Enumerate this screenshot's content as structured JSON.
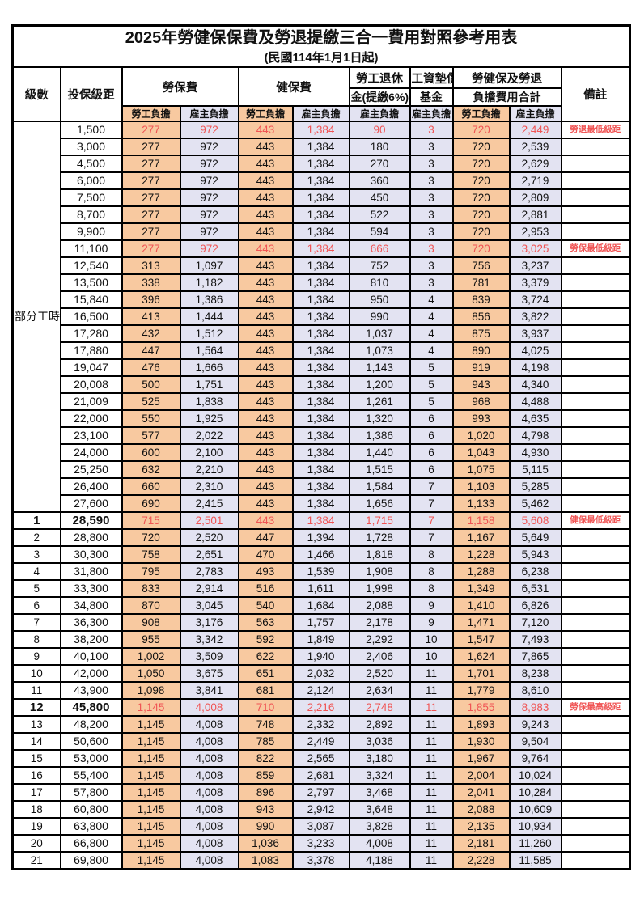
{
  "title": "2025年勞健保保費及勞退提繳三合一費用對照參考用表",
  "subtitle": "(民國114年1月1日起)",
  "colors": {
    "employee_fill": "#f8c9a0",
    "employer_fill": "#e3e3f2",
    "highlight_text": "#f05454",
    "border": "#000000"
  },
  "header": {
    "level": "級數",
    "bracket": "投保級距",
    "labor_insurance": "勞保費",
    "health_insurance": "健保費",
    "pension_line1": "勞工退休",
    "pension_line2": "金(提繳6%)",
    "wage_fund_line1": "工資墊償",
    "wage_fund_line2": "基金",
    "total_line1": "勞健保及勞退",
    "total_line2": "負擔費用合計",
    "remark": "備註",
    "employee_share": "勞工負擔",
    "employer_share": "雇主負擔"
  },
  "part_time": {
    "label": "部分工時",
    "row_count": 23
  },
  "rows": [
    {
      "level": null,
      "bracket": "1,500",
      "values": [
        "277",
        "972",
        "443",
        "1,384",
        "90",
        "3",
        "720",
        "2,449"
      ],
      "remark": "勞退最低級距",
      "highlight": true,
      "emphasis": false
    },
    {
      "level": null,
      "bracket": "3,000",
      "values": [
        "277",
        "972",
        "443",
        "1,384",
        "180",
        "3",
        "720",
        "2,539"
      ],
      "remark": "",
      "highlight": false,
      "emphasis": false
    },
    {
      "level": null,
      "bracket": "4,500",
      "values": [
        "277",
        "972",
        "443",
        "1,384",
        "270",
        "3",
        "720",
        "2,629"
      ],
      "remark": "",
      "highlight": false,
      "emphasis": false
    },
    {
      "level": null,
      "bracket": "6,000",
      "values": [
        "277",
        "972",
        "443",
        "1,384",
        "360",
        "3",
        "720",
        "2,719"
      ],
      "remark": "",
      "highlight": false,
      "emphasis": false
    },
    {
      "level": null,
      "bracket": "7,500",
      "values": [
        "277",
        "972",
        "443",
        "1,384",
        "450",
        "3",
        "720",
        "2,809"
      ],
      "remark": "",
      "highlight": false,
      "emphasis": false
    },
    {
      "level": null,
      "bracket": "8,700",
      "values": [
        "277",
        "972",
        "443",
        "1,384",
        "522",
        "3",
        "720",
        "2,881"
      ],
      "remark": "",
      "highlight": false,
      "emphasis": false
    },
    {
      "level": null,
      "bracket": "9,900",
      "values": [
        "277",
        "972",
        "443",
        "1,384",
        "594",
        "3",
        "720",
        "2,953"
      ],
      "remark": "",
      "highlight": false,
      "emphasis": false
    },
    {
      "level": null,
      "bracket": "11,100",
      "values": [
        "277",
        "972",
        "443",
        "1,384",
        "666",
        "3",
        "720",
        "3,025"
      ],
      "remark": "勞保最低級距",
      "highlight": true,
      "emphasis": false
    },
    {
      "level": null,
      "bracket": "12,540",
      "values": [
        "313",
        "1,097",
        "443",
        "1,384",
        "752",
        "3",
        "756",
        "3,237"
      ],
      "remark": "",
      "highlight": false,
      "emphasis": false
    },
    {
      "level": null,
      "bracket": "13,500",
      "values": [
        "338",
        "1,182",
        "443",
        "1,384",
        "810",
        "3",
        "781",
        "3,379"
      ],
      "remark": "",
      "highlight": false,
      "emphasis": false
    },
    {
      "level": null,
      "bracket": "15,840",
      "values": [
        "396",
        "1,386",
        "443",
        "1,384",
        "950",
        "4",
        "839",
        "3,724"
      ],
      "remark": "",
      "highlight": false,
      "emphasis": false
    },
    {
      "level": null,
      "bracket": "16,500",
      "values": [
        "413",
        "1,444",
        "443",
        "1,384",
        "990",
        "4",
        "856",
        "3,822"
      ],
      "remark": "",
      "highlight": false,
      "emphasis": false
    },
    {
      "level": null,
      "bracket": "17,280",
      "values": [
        "432",
        "1,512",
        "443",
        "1,384",
        "1,037",
        "4",
        "875",
        "3,937"
      ],
      "remark": "",
      "highlight": false,
      "emphasis": false
    },
    {
      "level": null,
      "bracket": "17,880",
      "values": [
        "447",
        "1,564",
        "443",
        "1,384",
        "1,073",
        "4",
        "890",
        "4,025"
      ],
      "remark": "",
      "highlight": false,
      "emphasis": false
    },
    {
      "level": null,
      "bracket": "19,047",
      "values": [
        "476",
        "1,666",
        "443",
        "1,384",
        "1,143",
        "5",
        "919",
        "4,198"
      ],
      "remark": "",
      "highlight": false,
      "emphasis": false
    },
    {
      "level": null,
      "bracket": "20,008",
      "values": [
        "500",
        "1,751",
        "443",
        "1,384",
        "1,200",
        "5",
        "943",
        "4,340"
      ],
      "remark": "",
      "highlight": false,
      "emphasis": false
    },
    {
      "level": null,
      "bracket": "21,009",
      "values": [
        "525",
        "1,838",
        "443",
        "1,384",
        "1,261",
        "5",
        "968",
        "4,488"
      ],
      "remark": "",
      "highlight": false,
      "emphasis": false
    },
    {
      "level": null,
      "bracket": "22,000",
      "values": [
        "550",
        "1,925",
        "443",
        "1,384",
        "1,320",
        "6",
        "993",
        "4,635"
      ],
      "remark": "",
      "highlight": false,
      "emphasis": false
    },
    {
      "level": null,
      "bracket": "23,100",
      "values": [
        "577",
        "2,022",
        "443",
        "1,384",
        "1,386",
        "6",
        "1,020",
        "4,798"
      ],
      "remark": "",
      "highlight": false,
      "emphasis": false
    },
    {
      "level": null,
      "bracket": "24,000",
      "values": [
        "600",
        "2,100",
        "443",
        "1,384",
        "1,440",
        "6",
        "1,043",
        "4,930"
      ],
      "remark": "",
      "highlight": false,
      "emphasis": false
    },
    {
      "level": null,
      "bracket": "25,250",
      "values": [
        "632",
        "2,210",
        "443",
        "1,384",
        "1,515",
        "6",
        "1,075",
        "5,115"
      ],
      "remark": "",
      "highlight": false,
      "emphasis": false
    },
    {
      "level": null,
      "bracket": "26,400",
      "values": [
        "660",
        "2,310",
        "443",
        "1,384",
        "1,584",
        "7",
        "1,103",
        "5,285"
      ],
      "remark": "",
      "highlight": false,
      "emphasis": false
    },
    {
      "level": null,
      "bracket": "27,600",
      "values": [
        "690",
        "2,415",
        "443",
        "1,384",
        "1,656",
        "7",
        "1,133",
        "5,462"
      ],
      "remark": "",
      "highlight": false,
      "emphasis": false
    },
    {
      "level": "1",
      "bracket": "28,590",
      "values": [
        "715",
        "2,501",
        "443",
        "1,384",
        "1,715",
        "7",
        "1,158",
        "5,608"
      ],
      "remark": "健保最低級距",
      "highlight": true,
      "emphasis": true
    },
    {
      "level": "2",
      "bracket": "28,800",
      "values": [
        "720",
        "2,520",
        "447",
        "1,394",
        "1,728",
        "7",
        "1,167",
        "5,649"
      ],
      "remark": "",
      "highlight": false,
      "emphasis": false
    },
    {
      "level": "3",
      "bracket": "30,300",
      "values": [
        "758",
        "2,651",
        "470",
        "1,466",
        "1,818",
        "8",
        "1,228",
        "5,943"
      ],
      "remark": "",
      "highlight": false,
      "emphasis": false
    },
    {
      "level": "4",
      "bracket": "31,800",
      "values": [
        "795",
        "2,783",
        "493",
        "1,539",
        "1,908",
        "8",
        "1,288",
        "6,238"
      ],
      "remark": "",
      "highlight": false,
      "emphasis": false
    },
    {
      "level": "5",
      "bracket": "33,300",
      "values": [
        "833",
        "2,914",
        "516",
        "1,611",
        "1,998",
        "8",
        "1,349",
        "6,531"
      ],
      "remark": "",
      "highlight": false,
      "emphasis": false
    },
    {
      "level": "6",
      "bracket": "34,800",
      "values": [
        "870",
        "3,045",
        "540",
        "1,684",
        "2,088",
        "9",
        "1,410",
        "6,826"
      ],
      "remark": "",
      "highlight": false,
      "emphasis": false
    },
    {
      "level": "7",
      "bracket": "36,300",
      "values": [
        "908",
        "3,176",
        "563",
        "1,757",
        "2,178",
        "9",
        "1,471",
        "7,120"
      ],
      "remark": "",
      "highlight": false,
      "emphasis": false
    },
    {
      "level": "8",
      "bracket": "38,200",
      "values": [
        "955",
        "3,342",
        "592",
        "1,849",
        "2,292",
        "10",
        "1,547",
        "7,493"
      ],
      "remark": "",
      "highlight": false,
      "emphasis": false
    },
    {
      "level": "9",
      "bracket": "40,100",
      "values": [
        "1,002",
        "3,509",
        "622",
        "1,940",
        "2,406",
        "10",
        "1,624",
        "7,865"
      ],
      "remark": "",
      "highlight": false,
      "emphasis": false
    },
    {
      "level": "10",
      "bracket": "42,000",
      "values": [
        "1,050",
        "3,675",
        "651",
        "2,032",
        "2,520",
        "11",
        "1,701",
        "8,238"
      ],
      "remark": "",
      "highlight": false,
      "emphasis": false
    },
    {
      "level": "11",
      "bracket": "43,900",
      "values": [
        "1,098",
        "3,841",
        "681",
        "2,124",
        "2,634",
        "11",
        "1,779",
        "8,610"
      ],
      "remark": "",
      "highlight": false,
      "emphasis": false
    },
    {
      "level": "12",
      "bracket": "45,800",
      "values": [
        "1,145",
        "4,008",
        "710",
        "2,216",
        "2,748",
        "11",
        "1,855",
        "8,983"
      ],
      "remark": "勞保最高級距",
      "highlight": true,
      "emphasis": true
    },
    {
      "level": "13",
      "bracket": "48,200",
      "values": [
        "1,145",
        "4,008",
        "748",
        "2,332",
        "2,892",
        "11",
        "1,893",
        "9,243"
      ],
      "remark": "",
      "highlight": false,
      "emphasis": false
    },
    {
      "level": "14",
      "bracket": "50,600",
      "values": [
        "1,145",
        "4,008",
        "785",
        "2,449",
        "3,036",
        "11",
        "1,930",
        "9,504"
      ],
      "remark": "",
      "highlight": false,
      "emphasis": false
    },
    {
      "level": "15",
      "bracket": "53,000",
      "values": [
        "1,145",
        "4,008",
        "822",
        "2,565",
        "3,180",
        "11",
        "1,967",
        "9,764"
      ],
      "remark": "",
      "highlight": false,
      "emphasis": false
    },
    {
      "level": "16",
      "bracket": "55,400",
      "values": [
        "1,145",
        "4,008",
        "859",
        "2,681",
        "3,324",
        "11",
        "2,004",
        "10,024"
      ],
      "remark": "",
      "highlight": false,
      "emphasis": false
    },
    {
      "level": "17",
      "bracket": "57,800",
      "values": [
        "1,145",
        "4,008",
        "896",
        "2,797",
        "3,468",
        "11",
        "2,041",
        "10,284"
      ],
      "remark": "",
      "highlight": false,
      "emphasis": false
    },
    {
      "level": "18",
      "bracket": "60,800",
      "values": [
        "1,145",
        "4,008",
        "943",
        "2,942",
        "3,648",
        "11",
        "2,088",
        "10,609"
      ],
      "remark": "",
      "highlight": false,
      "emphasis": false
    },
    {
      "level": "19",
      "bracket": "63,800",
      "values": [
        "1,145",
        "4,008",
        "990",
        "3,087",
        "3,828",
        "11",
        "2,135",
        "10,934"
      ],
      "remark": "",
      "highlight": false,
      "emphasis": false
    },
    {
      "level": "20",
      "bracket": "66,800",
      "values": [
        "1,145",
        "4,008",
        "1,036",
        "3,233",
        "4,008",
        "11",
        "2,181",
        "11,260"
      ],
      "remark": "",
      "highlight": false,
      "emphasis": false
    },
    {
      "level": "21",
      "bracket": "69,800",
      "values": [
        "1,145",
        "4,008",
        "1,083",
        "3,378",
        "4,188",
        "11",
        "2,228",
        "11,585"
      ],
      "remark": "",
      "highlight": false,
      "emphasis": false
    }
  ]
}
